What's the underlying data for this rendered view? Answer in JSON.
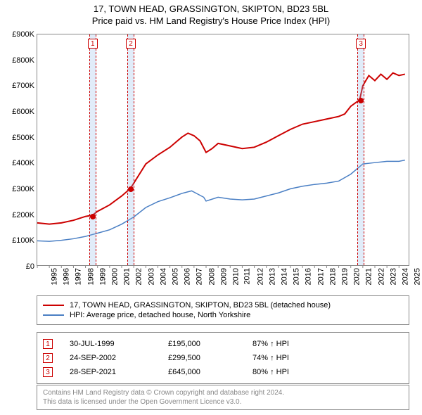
{
  "title": {
    "line1": "17, TOWN HEAD, GRASSINGTON, SKIPTON, BD23 5BL",
    "line2": "Price paid vs. HM Land Registry's House Price Index (HPI)"
  },
  "chart": {
    "type": "line",
    "background_color": "#ffffff",
    "grid_color": "#cccccc",
    "border_color": "#888888",
    "xlim": [
      1995,
      2025.8
    ],
    "ylim": [
      0,
      900000
    ],
    "ytick_step": 100000,
    "ytick_prefix": "£",
    "ytick_suffix": "K",
    "ytick_divisor": 1000,
    "xticks": [
      1995,
      1996,
      1997,
      1998,
      1999,
      2000,
      2001,
      2002,
      2003,
      2004,
      2005,
      2006,
      2007,
      2008,
      2009,
      2010,
      2011,
      2012,
      2013,
      2014,
      2015,
      2016,
      2017,
      2018,
      2019,
      2020,
      2021,
      2022,
      2023,
      2024,
      2025
    ],
    "series": [
      {
        "name": "property",
        "label": "17, TOWN HEAD, GRASSINGTON, SKIPTON, BD23 5BL (detached house)",
        "color": "#cc0000",
        "line_width": 2,
        "points": [
          [
            1995,
            165000
          ],
          [
            1996,
            160000
          ],
          [
            1997,
            165000
          ],
          [
            1998,
            175000
          ],
          [
            1999,
            190000
          ],
          [
            1999.58,
            195000
          ],
          [
            2000,
            210000
          ],
          [
            2001,
            235000
          ],
          [
            2002,
            270000
          ],
          [
            2002.73,
            299500
          ],
          [
            2003,
            320000
          ],
          [
            2004,
            395000
          ],
          [
            2005,
            430000
          ],
          [
            2006,
            460000
          ],
          [
            2007,
            500000
          ],
          [
            2007.5,
            515000
          ],
          [
            2008,
            505000
          ],
          [
            2008.5,
            485000
          ],
          [
            2009,
            440000
          ],
          [
            2009.5,
            455000
          ],
          [
            2010,
            475000
          ],
          [
            2011,
            465000
          ],
          [
            2012,
            455000
          ],
          [
            2013,
            460000
          ],
          [
            2014,
            480000
          ],
          [
            2015,
            505000
          ],
          [
            2016,
            530000
          ],
          [
            2017,
            550000
          ],
          [
            2018,
            560000
          ],
          [
            2019,
            570000
          ],
          [
            2020,
            580000
          ],
          [
            2020.5,
            590000
          ],
          [
            2021,
            620000
          ],
          [
            2021.74,
            645000
          ],
          [
            2022,
            700000
          ],
          [
            2022.5,
            740000
          ],
          [
            2023,
            720000
          ],
          [
            2023.5,
            745000
          ],
          [
            2024,
            725000
          ],
          [
            2024.5,
            750000
          ],
          [
            2025,
            740000
          ],
          [
            2025.5,
            745000
          ]
        ]
      },
      {
        "name": "hpi",
        "label": "HPI: Average price, detached house, North Yorkshire",
        "color": "#4a7fc4",
        "line_width": 1.5,
        "points": [
          [
            1995,
            95000
          ],
          [
            1996,
            93000
          ],
          [
            1997,
            97000
          ],
          [
            1998,
            103000
          ],
          [
            1999,
            112000
          ],
          [
            2000,
            125000
          ],
          [
            2001,
            138000
          ],
          [
            2002,
            160000
          ],
          [
            2003,
            188000
          ],
          [
            2004,
            225000
          ],
          [
            2005,
            248000
          ],
          [
            2006,
            263000
          ],
          [
            2007,
            280000
          ],
          [
            2007.8,
            290000
          ],
          [
            2008,
            285000
          ],
          [
            2008.8,
            265000
          ],
          [
            2009,
            250000
          ],
          [
            2010,
            265000
          ],
          [
            2011,
            258000
          ],
          [
            2012,
            255000
          ],
          [
            2013,
            258000
          ],
          [
            2014,
            270000
          ],
          [
            2015,
            282000
          ],
          [
            2016,
            298000
          ],
          [
            2017,
            308000
          ],
          [
            2018,
            315000
          ],
          [
            2019,
            320000
          ],
          [
            2020,
            328000
          ],
          [
            2021,
            355000
          ],
          [
            2022,
            395000
          ],
          [
            2023,
            400000
          ],
          [
            2024,
            405000
          ],
          [
            2025,
            405000
          ],
          [
            2025.5,
            410000
          ]
        ]
      }
    ],
    "markers": [
      {
        "id": "1",
        "x": 1999.58,
        "y": 195000,
        "date": "30-JUL-1999",
        "price": "£195,000",
        "pct": "87% ↑ HPI"
      },
      {
        "id": "2",
        "x": 2002.73,
        "y": 299500,
        "date": "24-SEP-2002",
        "price": "£299,500",
        "pct": "74% ↑ HPI"
      },
      {
        "id": "3",
        "x": 2021.74,
        "y": 645000,
        "date": "28-SEP-2021",
        "price": "£645,000",
        "pct": "80% ↑ HPI"
      }
    ],
    "marker_color": "#cc0000",
    "marker_band_fill": "rgba(135,180,230,0.25)"
  },
  "footer": {
    "line1": "Contains HM Land Registry data © Crown copyright and database right 2024.",
    "line2": "This data is licensed under the Open Government Licence v3.0."
  }
}
